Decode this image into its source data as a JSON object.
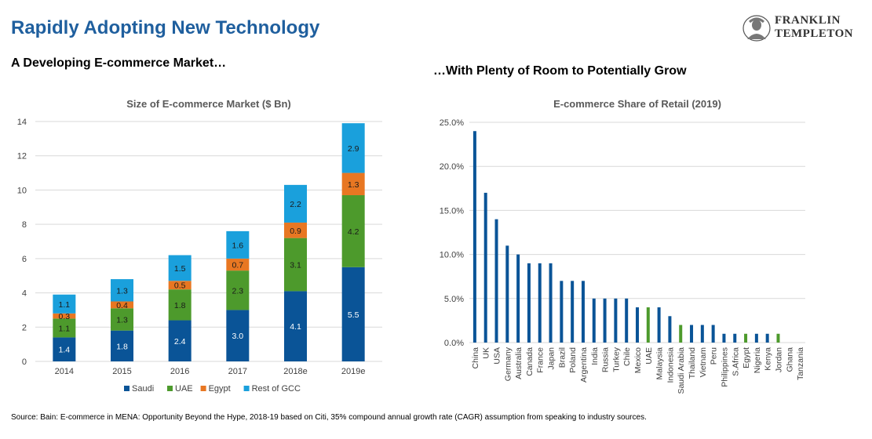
{
  "header": {
    "title": "Rapidly Adopting New Technology",
    "subtitle_left": "A Developing E-commerce Market…",
    "subtitle_right": "…With Plenty of Room to Potentially Grow",
    "logo_line1": "FRANKLIN",
    "logo_line2": "TEMPLETON"
  },
  "source": "Source: Bain: E-commerce in MENA: Opportunity Beyond the Hype, 2018-19 based on Citi, 35% compound annual growth rate (CAGR) assumption from speaking to industry sources.",
  "colors": {
    "saudi": "#0a5497",
    "uae": "#4d9a2c",
    "egypt": "#e87722",
    "rest_gcc": "#1aa0dc",
    "title": "#1f5f9e",
    "grid": "#d9d9d9",
    "axis_text": "#404040"
  },
  "chart_data": [
    {
      "type": "bar",
      "stacked": true,
      "title": "Size of E-commerce Market ($ Bn)",
      "categories": [
        "2014",
        "2015",
        "2016",
        "2017",
        "2018e",
        "2019e"
      ],
      "series": [
        {
          "name": "Saudi",
          "values": [
            1.4,
            1.8,
            2.4,
            3.0,
            4.1,
            5.5
          ],
          "color": "#0a5497",
          "label_color": "#ffffff"
        },
        {
          "name": "UAE",
          "values": [
            1.1,
            1.3,
            1.8,
            2.3,
            3.1,
            4.2
          ],
          "color": "#4d9a2c",
          "label_color": "#1a1a1a"
        },
        {
          "name": "Egypt",
          "values": [
            0.3,
            0.4,
            0.5,
            0.7,
            0.9,
            1.3
          ],
          "color": "#e87722",
          "label_color": "#1a1a1a"
        },
        {
          "name": "Rest of GCC",
          "values": [
            1.1,
            1.3,
            1.5,
            1.6,
            2.2,
            2.9
          ],
          "color": "#1aa0dc",
          "label_color": "#1a1a1a"
        }
      ],
      "ylim": [
        0,
        14
      ],
      "yticks": [
        0,
        2,
        4,
        6,
        8,
        10,
        12,
        14
      ],
      "grid": true,
      "legend": "bottom"
    },
    {
      "type": "bar",
      "title": "E-commerce Share of Retail (2019)",
      "categories": [
        "China",
        "UK",
        "USA",
        "Germany",
        "Australia",
        "Canada",
        "France",
        "Japan",
        "Brazil",
        "Poland",
        "Argentina",
        "India",
        "Russia",
        "Turkey",
        "Chile",
        "Mexico",
        "UAE",
        "Malaysia",
        "Indonesia",
        "Saudi Arabia",
        "Thailand",
        "Vietnam",
        "Peru",
        "Philippines",
        "S.Africa",
        "Egypt",
        "Nigeria",
        "Kenya",
        "Jordan",
        "Ghana",
        "Tanzania"
      ],
      "values": [
        24,
        17,
        14,
        11,
        10,
        9,
        9,
        9,
        7,
        7,
        7,
        5,
        5,
        5,
        5,
        4,
        4,
        4,
        3,
        2,
        2,
        2,
        2,
        1,
        1,
        1,
        1,
        1,
        1,
        0,
        0
      ],
      "highlight": [
        "UAE",
        "Saudi Arabia",
        "Egypt",
        "Jordan"
      ],
      "color": "#0a5497",
      "highlight_color": "#4d9a2c",
      "ylim": [
        0,
        25
      ],
      "yticks": [
        "0.0%",
        "5.0%",
        "10.0%",
        "15.0%",
        "20.0%",
        "25.0%"
      ],
      "grid": true
    }
  ]
}
